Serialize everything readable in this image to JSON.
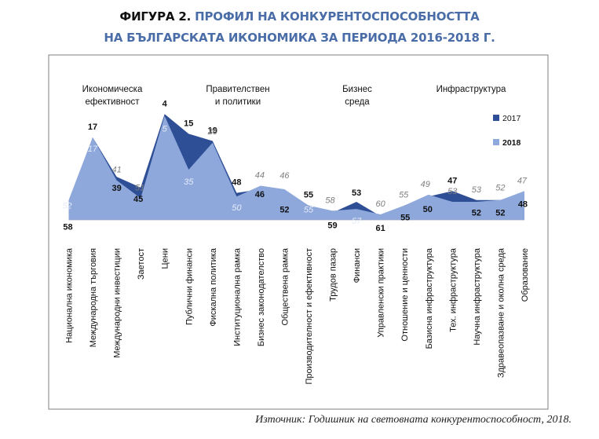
{
  "figure": {
    "label": "ФИГУРА 2.",
    "title_line1": "ПРОФИЛ НА КОНКУРЕНТОСПОСОБНОСТТА",
    "title_line2": "НА БЪЛГАРСКАТА ИКОНОМИКА ЗА ПЕРИОДА 2016-2018 Г."
  },
  "source": "Източник: Годишник на световната конкурентоспособност, 2018.",
  "colors": {
    "series_2017": "#2e4f96",
    "series_2018": "#8ea8dc",
    "frame": "#7f7f7f",
    "text": "#111111",
    "label_2018": "#7f7f7f"
  },
  "chart_data": {
    "type": "area",
    "y_axis": {
      "inverted": true,
      "range": [
        0,
        65
      ],
      "note": "rank (lower is better)"
    },
    "grid": false,
    "legend_position": "right",
    "group_labels": [
      {
        "text": [
          "Икономическа",
          "ефективност"
        ]
      },
      {
        "text": [
          "Правителствен",
          "и политики"
        ]
      },
      {
        "text": [
          "Бизнес",
          "среда"
        ]
      },
      {
        "text": [
          "Инфраструктура"
        ]
      }
    ],
    "categories": [
      "Национална икономика",
      "Международна търговия",
      "Международни инвестиции",
      "Заетост",
      "Цени",
      "Публични финанси",
      "Фискална политика",
      "Институционална рамка",
      "Бизнес законодателство",
      "Обществена рамка",
      "Производителност и ефективност",
      "Трудов пазар",
      "Финанси",
      "Управленски практики",
      "Отношение и ценности",
      "Базисна инфраструктура",
      "Тех. инфраструктура",
      "Научна инфраструктура",
      "Здравеопазване и околна среда",
      "Образование"
    ],
    "series": [
      {
        "name": "2017",
        "values": [
          58,
          17,
          39,
          45,
          4,
          15,
          19,
          48,
          46,
          52,
          55,
          59,
          53,
          61,
          55,
          50,
          47,
          52,
          52,
          48
        ]
      },
      {
        "name": "2018",
        "values": [
          52,
          17,
          41,
          51,
          5,
          35,
          20,
          50,
          44,
          46,
          55,
          58,
          57,
          60,
          55,
          49,
          53,
          53,
          52,
          47
        ]
      }
    ]
  }
}
